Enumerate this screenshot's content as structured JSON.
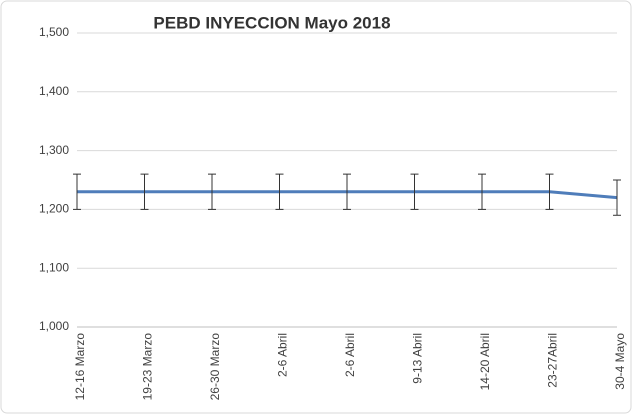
{
  "chart_data": {
    "type": "line",
    "title": "PEBD INYECCION Mayo 2018",
    "categories": [
      "12-16 Marzo",
      "19-23 Marzo",
      "26-30 Marzo",
      "2-6 Abril",
      "2-6 Abril",
      "9-13 Abril",
      "14-20 Abril",
      "23-27Abril",
      "30-4 Mayo"
    ],
    "series": [
      {
        "color": "#4f7dba",
        "values": [
          1230,
          1230,
          1230,
          1230,
          1230,
          1230,
          1230,
          1230,
          1220
        ],
        "errors": [
          30,
          30,
          30,
          30,
          30,
          30,
          30,
          30,
          30
        ]
      }
    ],
    "ylim": [
      1000,
      1500
    ],
    "yticks": [
      {
        "value": 1000,
        "label": "1,000"
      },
      {
        "value": 1100,
        "label": "1,100"
      },
      {
        "value": 1200,
        "label": "1,200"
      },
      {
        "value": 1300,
        "label": "1,300"
      },
      {
        "value": 1400,
        "label": "1,400"
      },
      {
        "value": 1500,
        "label": "1,500"
      }
    ],
    "grid": true
  }
}
